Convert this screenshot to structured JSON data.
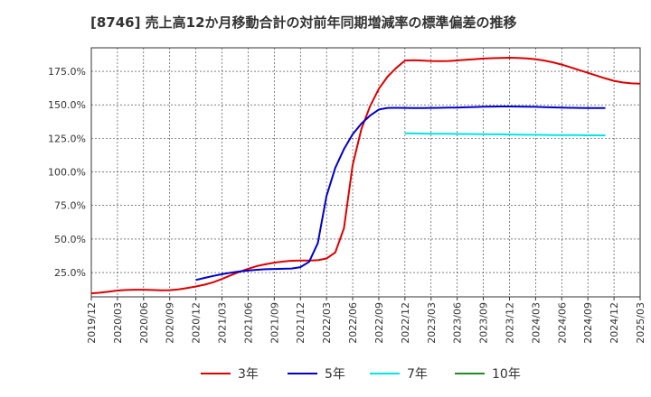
{
  "chart_data": {
    "type": "line",
    "title": "[8746]  売上高12か月移動合計の対前年同期増減率の標準偏差の推移",
    "xlabel": "",
    "ylabel": "",
    "ylim": [
      6.9,
      192.5
    ],
    "yticks": [
      25,
      50,
      75,
      100,
      125,
      150,
      175
    ],
    "ytick_labels": [
      "25.0%",
      "50.0%",
      "75.0%",
      "100.0%",
      "125.0%",
      "150.0%",
      "175.0%"
    ],
    "xticks": [
      "2019/12",
      "2020/03",
      "2020/06",
      "2020/09",
      "2020/12",
      "2021/03",
      "2021/06",
      "2021/09",
      "2021/12",
      "2022/03",
      "2022/06",
      "2022/09",
      "2022/12",
      "2023/03",
      "2023/06",
      "2023/09",
      "2023/12",
      "2024/03",
      "2024/06",
      "2024/09",
      "2024/12",
      "2025/03"
    ],
    "x_start": "2019/12",
    "grid": true,
    "legend_position": "bottom",
    "series": [
      {
        "name": "3年",
        "color": "#dd0000",
        "start_month_index": 0,
        "values": [
          9.5,
          10.0,
          10.8,
          11.6,
          12.0,
          12.2,
          12.2,
          12.0,
          11.8,
          11.9,
          12.5,
          13.5,
          14.6,
          16.0,
          17.8,
          20.2,
          23.0,
          25.5,
          27.8,
          29.8,
          31.2,
          32.4,
          33.2,
          33.8,
          34.0,
          34.0,
          34.2,
          35.5,
          40.0,
          58.0,
          105.0,
          132.0,
          149.0,
          162.0,
          171.0,
          177.5,
          183.0,
          183.2,
          183.0,
          182.7,
          182.6,
          182.7,
          183.1,
          183.6,
          184.0,
          184.5,
          184.8,
          185.0,
          185.1,
          185.0,
          184.6,
          184.0,
          183.0,
          181.7,
          180.0,
          178.0,
          175.9,
          173.9,
          171.8,
          169.7,
          167.9,
          166.7,
          166.0,
          165.8
        ]
      },
      {
        "name": "5年",
        "color": "#0000cc",
        "start_month_index": 12,
        "values": [
          19.5,
          21.0,
          22.5,
          23.8,
          24.9,
          25.8,
          26.5,
          27.1,
          27.5,
          27.7,
          27.8,
          28.0,
          29.0,
          33.0,
          47.0,
          82.0,
          103.0,
          117.0,
          128.0,
          136.0,
          142.0,
          146.5,
          147.7,
          147.8,
          147.7,
          147.6,
          147.6,
          147.7,
          147.8,
          147.9,
          148.0,
          148.2,
          148.4,
          148.6,
          148.7,
          148.8,
          148.8,
          148.7,
          148.6,
          148.5,
          148.3,
          148.1,
          148.0,
          147.8,
          147.7,
          147.6,
          147.6,
          147.6
        ]
      },
      {
        "name": "7年",
        "color": "#00e5e5",
        "start_month_index": 36,
        "values": [
          128.8,
          128.7,
          128.6,
          128.5,
          128.5,
          128.4,
          128.3,
          128.3,
          128.2,
          128.1,
          128.0,
          128.0,
          127.9,
          127.8,
          127.7,
          127.7,
          127.6,
          127.5,
          127.5,
          127.4,
          127.4,
          127.3,
          127.3,
          127.3
        ]
      },
      {
        "name": "10年",
        "color": "#228b22",
        "start_month_index": 0,
        "values": []
      }
    ]
  }
}
